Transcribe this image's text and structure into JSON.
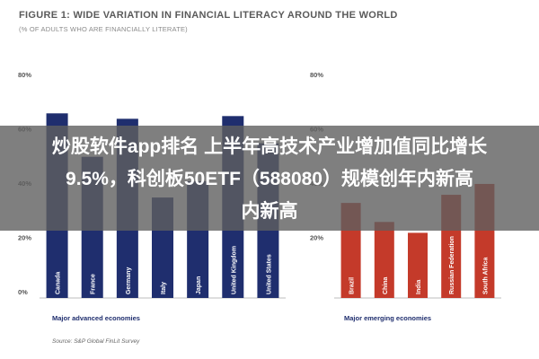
{
  "title": "FIGURE 1: WIDE VARIATION IN FINANCIAL LITERACY AROUND THE WORLD",
  "subtitle": "(% OF ADULTS WHO ARE FINANCIALLY LITERATE)",
  "source": "Source: S&P Global FinLit Survey",
  "overlay": {
    "line1": "炒股软件app排名 上半年高技术产业增加值同比增长",
    "line2": "9.5%，科创板50ETF（588080）规模创年内新高",
    "line3": "内新高"
  },
  "colors": {
    "advanced_bar": "#1f2e6e",
    "emerging_bar": "#c43a2a",
    "tick_text": "#555555",
    "group_label": "#1f2e6e"
  },
  "chart_data": [
    {
      "type": "bar",
      "group": "Major advanced economies",
      "categories": [
        "Canada",
        "France",
        "Germany",
        "Italy",
        "Japan",
        "United Kingdom",
        "United States"
      ],
      "values": [
        68,
        52,
        66,
        37,
        43,
        67,
        57
      ],
      "ylim": [
        0,
        80
      ],
      "yticks": [
        "80%",
        "60%",
        "40%",
        "20%",
        "0%"
      ],
      "grid": false
    },
    {
      "type": "bar",
      "group": "Major emerging economies",
      "categories": [
        "Brazil",
        "China",
        "India",
        "Russian Federation",
        "South Africa"
      ],
      "values": [
        35,
        28,
        24,
        38,
        42
      ],
      "ylim": [
        0,
        80
      ],
      "yticks": [
        "80%",
        "60%",
        "40%",
        "20%"
      ],
      "grid": false
    }
  ]
}
